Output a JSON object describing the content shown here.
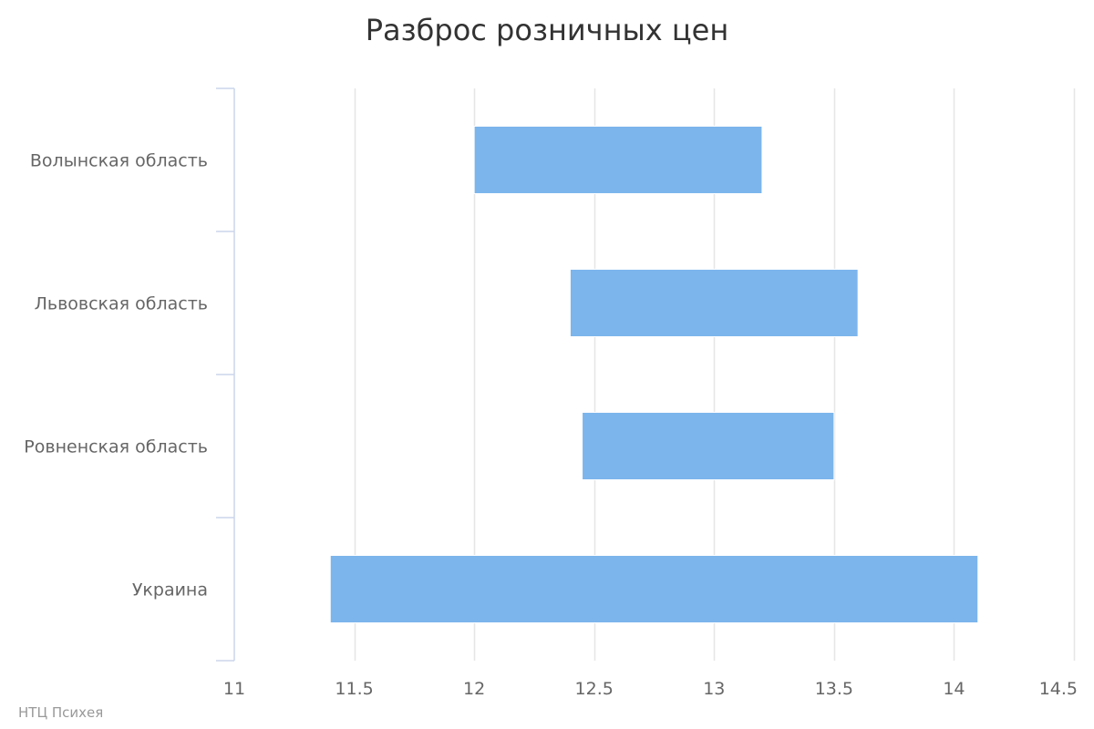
{
  "chart_data": {
    "type": "bar",
    "orientation": "horizontal",
    "subtype": "columnrange",
    "title": "Разброс розничных цен",
    "categories": [
      "Волынская область",
      "Львовская область",
      "Ровненская область",
      "Украина"
    ],
    "series": [
      {
        "color": "#7cb5ec",
        "ranges": [
          [
            12.0,
            13.2
          ],
          [
            12.4,
            13.6
          ],
          [
            12.45,
            13.5
          ],
          [
            11.4,
            14.1
          ]
        ]
      }
    ],
    "xlim": [
      11,
      14.5
    ],
    "xticks": [
      11,
      11.5,
      12,
      12.5,
      13,
      13.5,
      14,
      14.5
    ],
    "xtick_labels": [
      "11",
      "11.5",
      "12",
      "12.5",
      "13",
      "13.5",
      "14",
      "14.5"
    ],
    "grid": true,
    "legend": false
  },
  "credits": "НТЦ Психея",
  "colors": {
    "bar": "#7cb5ec",
    "grid": "#e6e6e6",
    "axis": "#ccd6eb",
    "text": "#666666",
    "title": "#333333"
  }
}
